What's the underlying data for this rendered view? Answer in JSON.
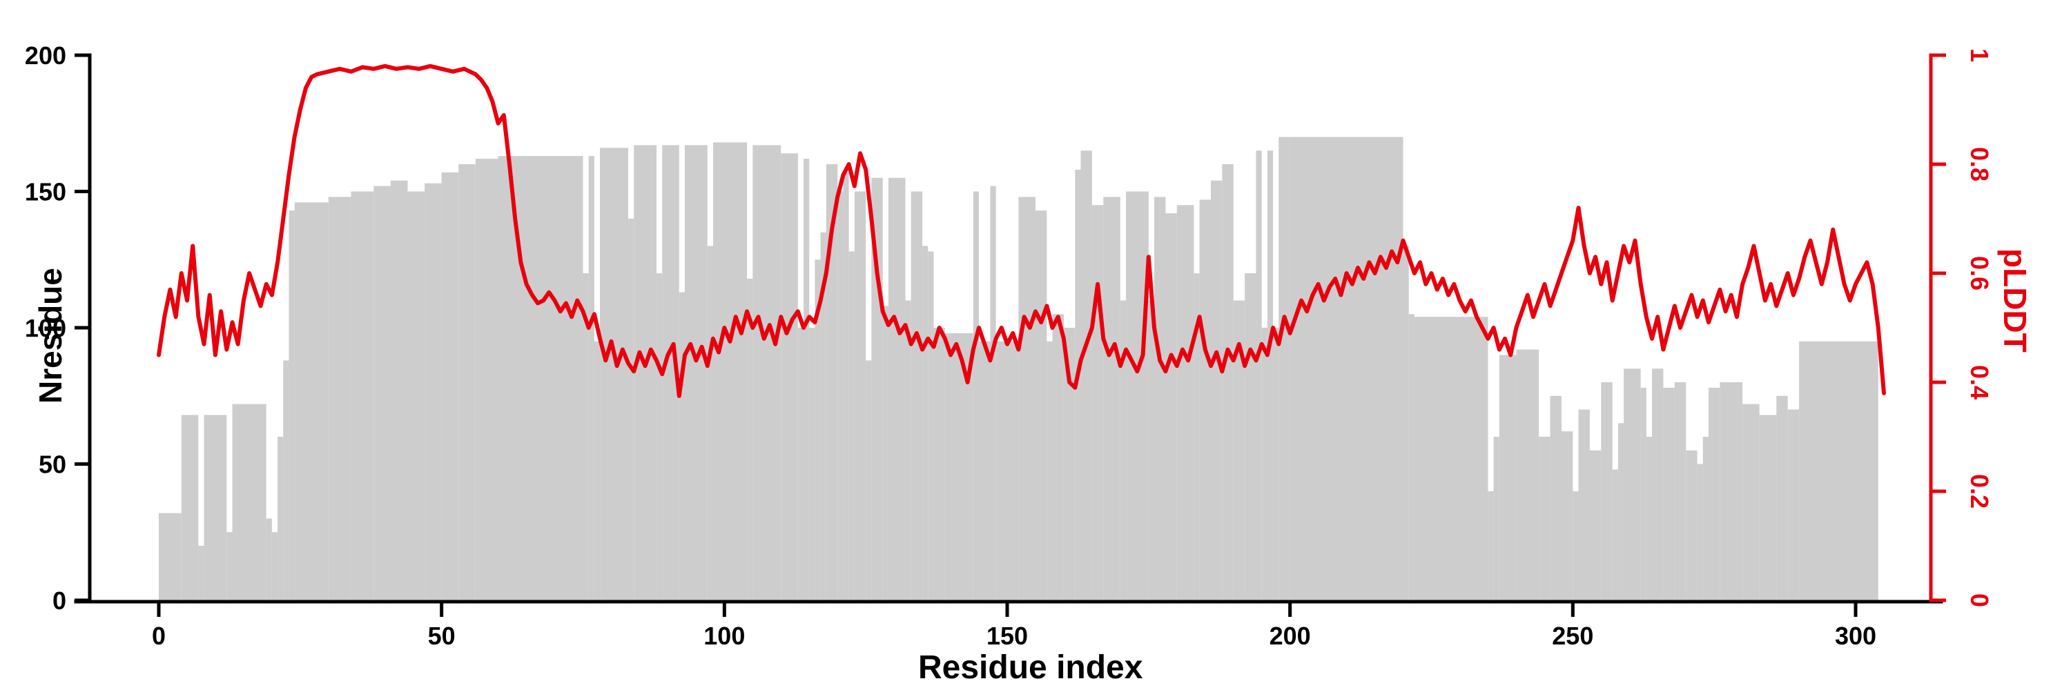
{
  "figure": {
    "background": "#ffffff"
  },
  "chart_data": {
    "type": "bar",
    "subtype": "histogram-with-line-overlay",
    "title": "",
    "xlabel": "Residue index",
    "ylabel_left": "Nresidue",
    "ylabel_right": "pLDDT",
    "xlim": [
      -8,
      318
    ],
    "y_left_lim": [
      0,
      200
    ],
    "y_right_lim": [
      0,
      1
    ],
    "x_ticks": [
      0,
      50,
      100,
      150,
      200,
      250,
      300
    ],
    "y_left_ticks": [
      0,
      50,
      100,
      150,
      200
    ],
    "y_right_ticks": [
      0,
      0.2,
      0.4,
      0.6,
      0.8,
      1
    ],
    "grid": false,
    "legend": "none",
    "colors": {
      "bars": "#cdcdcd",
      "line": "#e8000d",
      "axis": "#000000"
    },
    "series": [
      {
        "name": "Nresidue",
        "type": "bar",
        "axis": "left"
      },
      {
        "name": "pLDDT",
        "type": "line",
        "axis": "right"
      }
    ],
    "bars_segments": [
      [
        0,
        4,
        32
      ],
      [
        4,
        7,
        68
      ],
      [
        7,
        8,
        20
      ],
      [
        8,
        12,
        68
      ],
      [
        12,
        13,
        25
      ],
      [
        13,
        19,
        72
      ],
      [
        19,
        20,
        30
      ],
      [
        20,
        21,
        25
      ],
      [
        21,
        22,
        60
      ],
      [
        22,
        23,
        88
      ],
      [
        23,
        24,
        143
      ],
      [
        24,
        30,
        146
      ],
      [
        30,
        34,
        148
      ],
      [
        34,
        38,
        150
      ],
      [
        38,
        41,
        152
      ],
      [
        41,
        44,
        154
      ],
      [
        44,
        47,
        150
      ],
      [
        47,
        50,
        153
      ],
      [
        50,
        53,
        157
      ],
      [
        53,
        56,
        160
      ],
      [
        56,
        60,
        162
      ],
      [
        60,
        75,
        163
      ],
      [
        75,
        76,
        120
      ],
      [
        76,
        77,
        163
      ],
      [
        77,
        78,
        95
      ],
      [
        78,
        83,
        166
      ],
      [
        83,
        84,
        140
      ],
      [
        84,
        88,
        167
      ],
      [
        88,
        89,
        120
      ],
      [
        89,
        92,
        167
      ],
      [
        92,
        93,
        113
      ],
      [
        93,
        97,
        167
      ],
      [
        97,
        98,
        130
      ],
      [
        98,
        104,
        168
      ],
      [
        104,
        105,
        118
      ],
      [
        105,
        110,
        167
      ],
      [
        110,
        113,
        164
      ],
      [
        113,
        114,
        100
      ],
      [
        114,
        115,
        162
      ],
      [
        115,
        116,
        100
      ],
      [
        116,
        117,
        125
      ],
      [
        117,
        118,
        135
      ],
      [
        118,
        120,
        160
      ],
      [
        120,
        121,
        150
      ],
      [
        121,
        122,
        157
      ],
      [
        122,
        123,
        128
      ],
      [
        123,
        125,
        150
      ],
      [
        125,
        126,
        88
      ],
      [
        126,
        128,
        155
      ],
      [
        128,
        129,
        108
      ],
      [
        129,
        132,
        155
      ],
      [
        132,
        133,
        110
      ],
      [
        133,
        135,
        150
      ],
      [
        135,
        136,
        130
      ],
      [
        136,
        137,
        128
      ],
      [
        137,
        139,
        100
      ],
      [
        139,
        144,
        98
      ],
      [
        144,
        145,
        150
      ],
      [
        145,
        147,
        95
      ],
      [
        147,
        148,
        152
      ],
      [
        148,
        152,
        95
      ],
      [
        152,
        155,
        148
      ],
      [
        155,
        157,
        143
      ],
      [
        157,
        158,
        95
      ],
      [
        158,
        160,
        105
      ],
      [
        160,
        162,
        100
      ],
      [
        162,
        163,
        158
      ],
      [
        163,
        165,
        165
      ],
      [
        165,
        167,
        145
      ],
      [
        167,
        170,
        148
      ],
      [
        170,
        171,
        110
      ],
      [
        171,
        175,
        150
      ],
      [
        175,
        176,
        110
      ],
      [
        176,
        178,
        148
      ],
      [
        178,
        180,
        142
      ],
      [
        180,
        183,
        145
      ],
      [
        183,
        184,
        120
      ],
      [
        184,
        186,
        147
      ],
      [
        186,
        188,
        154
      ],
      [
        188,
        190,
        160
      ],
      [
        190,
        192,
        110
      ],
      [
        192,
        194,
        120
      ],
      [
        194,
        195,
        165
      ],
      [
        195,
        196,
        100
      ],
      [
        196,
        197,
        165
      ],
      [
        197,
        198,
        100
      ],
      [
        198,
        200,
        170
      ],
      [
        200,
        220,
        170
      ],
      [
        220,
        221,
        130
      ],
      [
        221,
        222,
        105
      ],
      [
        222,
        235,
        104
      ],
      [
        235,
        236,
        40
      ],
      [
        236,
        237,
        60
      ],
      [
        237,
        240,
        90
      ],
      [
        240,
        244,
        92
      ],
      [
        244,
        246,
        60
      ],
      [
        246,
        248,
        75
      ],
      [
        248,
        250,
        62
      ],
      [
        250,
        251,
        40
      ],
      [
        251,
        253,
        70
      ],
      [
        253,
        255,
        55
      ],
      [
        255,
        257,
        80
      ],
      [
        257,
        258,
        48
      ],
      [
        258,
        259,
        65
      ],
      [
        259,
        262,
        85
      ],
      [
        262,
        263,
        78
      ],
      [
        263,
        264,
        60
      ],
      [
        264,
        266,
        85
      ],
      [
        266,
        268,
        78
      ],
      [
        268,
        270,
        80
      ],
      [
        270,
        272,
        55
      ],
      [
        272,
        273,
        50
      ],
      [
        273,
        274,
        60
      ],
      [
        274,
        276,
        78
      ],
      [
        276,
        280,
        80
      ],
      [
        280,
        283,
        72
      ],
      [
        283,
        286,
        68
      ],
      [
        286,
        288,
        75
      ],
      [
        288,
        290,
        70
      ],
      [
        290,
        304,
        95
      ]
    ],
    "line_points": [
      [
        0,
        0.45
      ],
      [
        1,
        0.52
      ],
      [
        2,
        0.57
      ],
      [
        3,
        0.52
      ],
      [
        4,
        0.6
      ],
      [
        5,
        0.55
      ],
      [
        6,
        0.65
      ],
      [
        7,
        0.52
      ],
      [
        8,
        0.47
      ],
      [
        9,
        0.56
      ],
      [
        10,
        0.45
      ],
      [
        11,
        0.53
      ],
      [
        12,
        0.46
      ],
      [
        13,
        0.51
      ],
      [
        14,
        0.47
      ],
      [
        15,
        0.55
      ],
      [
        16,
        0.6
      ],
      [
        17,
        0.57
      ],
      [
        18,
        0.54
      ],
      [
        19,
        0.58
      ],
      [
        20,
        0.56
      ],
      [
        21,
        0.62
      ],
      [
        22,
        0.7
      ],
      [
        23,
        0.78
      ],
      [
        24,
        0.85
      ],
      [
        25,
        0.9
      ],
      [
        26,
        0.94
      ],
      [
        27,
        0.96
      ],
      [
        28,
        0.965
      ],
      [
        30,
        0.97
      ],
      [
        32,
        0.975
      ],
      [
        34,
        0.97
      ],
      [
        36,
        0.978
      ],
      [
        38,
        0.975
      ],
      [
        40,
        0.98
      ],
      [
        42,
        0.975
      ],
      [
        44,
        0.978
      ],
      [
        46,
        0.975
      ],
      [
        48,
        0.98
      ],
      [
        50,
        0.975
      ],
      [
        52,
        0.97
      ],
      [
        54,
        0.975
      ],
      [
        56,
        0.965
      ],
      [
        57,
        0.955
      ],
      [
        58,
        0.94
      ],
      [
        59,
        0.915
      ],
      [
        60,
        0.875
      ],
      [
        61,
        0.89
      ],
      [
        62,
        0.8
      ],
      [
        63,
        0.7
      ],
      [
        64,
        0.62
      ],
      [
        65,
        0.58
      ],
      [
        66,
        0.56
      ],
      [
        67,
        0.545
      ],
      [
        68,
        0.55
      ],
      [
        69,
        0.565
      ],
      [
        70,
        0.55
      ],
      [
        71,
        0.53
      ],
      [
        72,
        0.545
      ],
      [
        73,
        0.52
      ],
      [
        74,
        0.55
      ],
      [
        75,
        0.53
      ],
      [
        76,
        0.5
      ],
      [
        77,
        0.525
      ],
      [
        78,
        0.48
      ],
      [
        79,
        0.44
      ],
      [
        80,
        0.475
      ],
      [
        81,
        0.43
      ],
      [
        82,
        0.46
      ],
      [
        83,
        0.435
      ],
      [
        84,
        0.42
      ],
      [
        85,
        0.455
      ],
      [
        86,
        0.43
      ],
      [
        87,
        0.46
      ],
      [
        88,
        0.44
      ],
      [
        89,
        0.415
      ],
      [
        90,
        0.45
      ],
      [
        91,
        0.47
      ],
      [
        92,
        0.375
      ],
      [
        93,
        0.45
      ],
      [
        94,
        0.47
      ],
      [
        95,
        0.44
      ],
      [
        96,
        0.465
      ],
      [
        97,
        0.43
      ],
      [
        98,
        0.48
      ],
      [
        99,
        0.455
      ],
      [
        100,
        0.5
      ],
      [
        101,
        0.475
      ],
      [
        102,
        0.52
      ],
      [
        103,
        0.49
      ],
      [
        104,
        0.53
      ],
      [
        105,
        0.5
      ],
      [
        106,
        0.52
      ],
      [
        107,
        0.48
      ],
      [
        108,
        0.505
      ],
      [
        109,
        0.47
      ],
      [
        110,
        0.52
      ],
      [
        111,
        0.49
      ],
      [
        112,
        0.515
      ],
      [
        113,
        0.53
      ],
      [
        114,
        0.5
      ],
      [
        115,
        0.52
      ],
      [
        116,
        0.51
      ],
      [
        117,
        0.55
      ],
      [
        118,
        0.6
      ],
      [
        119,
        0.68
      ],
      [
        120,
        0.74
      ],
      [
        121,
        0.78
      ],
      [
        122,
        0.8
      ],
      [
        123,
        0.76
      ],
      [
        124,
        0.82
      ],
      [
        125,
        0.79
      ],
      [
        126,
        0.7
      ],
      [
        127,
        0.6
      ],
      [
        128,
        0.53
      ],
      [
        129,
        0.505
      ],
      [
        130,
        0.52
      ],
      [
        131,
        0.49
      ],
      [
        132,
        0.505
      ],
      [
        133,
        0.47
      ],
      [
        134,
        0.49
      ],
      [
        135,
        0.46
      ],
      [
        136,
        0.48
      ],
      [
        137,
        0.465
      ],
      [
        138,
        0.5
      ],
      [
        139,
        0.48
      ],
      [
        140,
        0.45
      ],
      [
        141,
        0.47
      ],
      [
        142,
        0.44
      ],
      [
        143,
        0.4
      ],
      [
        144,
        0.46
      ],
      [
        145,
        0.5
      ],
      [
        146,
        0.47
      ],
      [
        147,
        0.44
      ],
      [
        148,
        0.48
      ],
      [
        149,
        0.5
      ],
      [
        150,
        0.47
      ],
      [
        151,
        0.49
      ],
      [
        152,
        0.46
      ],
      [
        153,
        0.52
      ],
      [
        154,
        0.5
      ],
      [
        155,
        0.53
      ],
      [
        156,
        0.51
      ],
      [
        157,
        0.54
      ],
      [
        158,
        0.5
      ],
      [
        159,
        0.52
      ],
      [
        160,
        0.48
      ],
      [
        161,
        0.4
      ],
      [
        162,
        0.39
      ],
      [
        163,
        0.44
      ],
      [
        164,
        0.47
      ],
      [
        165,
        0.5
      ],
      [
        166,
        0.58
      ],
      [
        167,
        0.48
      ],
      [
        168,
        0.45
      ],
      [
        169,
        0.47
      ],
      [
        170,
        0.43
      ],
      [
        171,
        0.46
      ],
      [
        172,
        0.44
      ],
      [
        173,
        0.42
      ],
      [
        174,
        0.45
      ],
      [
        175,
        0.63
      ],
      [
        176,
        0.5
      ],
      [
        177,
        0.44
      ],
      [
        178,
        0.42
      ],
      [
        179,
        0.45
      ],
      [
        180,
        0.43
      ],
      [
        181,
        0.46
      ],
      [
        182,
        0.44
      ],
      [
        183,
        0.48
      ],
      [
        184,
        0.52
      ],
      [
        185,
        0.46
      ],
      [
        186,
        0.43
      ],
      [
        187,
        0.455
      ],
      [
        188,
        0.42
      ],
      [
        189,
        0.46
      ],
      [
        190,
        0.44
      ],
      [
        191,
        0.47
      ],
      [
        192,
        0.43
      ],
      [
        193,
        0.46
      ],
      [
        194,
        0.44
      ],
      [
        195,
        0.47
      ],
      [
        196,
        0.45
      ],
      [
        197,
        0.5
      ],
      [
        198,
        0.47
      ],
      [
        199,
        0.52
      ],
      [
        200,
        0.49
      ],
      [
        201,
        0.52
      ],
      [
        202,
        0.55
      ],
      [
        203,
        0.53
      ],
      [
        204,
        0.56
      ],
      [
        205,
        0.58
      ],
      [
        206,
        0.55
      ],
      [
        207,
        0.575
      ],
      [
        208,
        0.59
      ],
      [
        209,
        0.56
      ],
      [
        210,
        0.6
      ],
      [
        211,
        0.58
      ],
      [
        212,
        0.61
      ],
      [
        213,
        0.59
      ],
      [
        214,
        0.62
      ],
      [
        215,
        0.6
      ],
      [
        216,
        0.63
      ],
      [
        217,
        0.61
      ],
      [
        218,
        0.64
      ],
      [
        219,
        0.62
      ],
      [
        220,
        0.66
      ],
      [
        221,
        0.63
      ],
      [
        222,
        0.6
      ],
      [
        223,
        0.62
      ],
      [
        224,
        0.58
      ],
      [
        225,
        0.6
      ],
      [
        226,
        0.57
      ],
      [
        227,
        0.59
      ],
      [
        228,
        0.56
      ],
      [
        229,
        0.58
      ],
      [
        230,
        0.55
      ],
      [
        231,
        0.53
      ],
      [
        232,
        0.55
      ],
      [
        233,
        0.52
      ],
      [
        234,
        0.5
      ],
      [
        235,
        0.48
      ],
      [
        236,
        0.5
      ],
      [
        237,
        0.46
      ],
      [
        238,
        0.48
      ],
      [
        239,
        0.45
      ],
      [
        240,
        0.5
      ],
      [
        241,
        0.53
      ],
      [
        242,
        0.56
      ],
      [
        243,
        0.52
      ],
      [
        244,
        0.55
      ],
      [
        245,
        0.58
      ],
      [
        246,
        0.54
      ],
      [
        247,
        0.57
      ],
      [
        248,
        0.6
      ],
      [
        249,
        0.63
      ],
      [
        250,
        0.66
      ],
      [
        251,
        0.72
      ],
      [
        252,
        0.65
      ],
      [
        253,
        0.6
      ],
      [
        254,
        0.63
      ],
      [
        255,
        0.58
      ],
      [
        256,
        0.62
      ],
      [
        257,
        0.55
      ],
      [
        258,
        0.6
      ],
      [
        259,
        0.65
      ],
      [
        260,
        0.62
      ],
      [
        261,
        0.66
      ],
      [
        262,
        0.58
      ],
      [
        263,
        0.52
      ],
      [
        264,
        0.48
      ],
      [
        265,
        0.52
      ],
      [
        266,
        0.46
      ],
      [
        267,
        0.5
      ],
      [
        268,
        0.54
      ],
      [
        269,
        0.5
      ],
      [
        270,
        0.53
      ],
      [
        271,
        0.56
      ],
      [
        272,
        0.52
      ],
      [
        273,
        0.55
      ],
      [
        274,
        0.51
      ],
      [
        275,
        0.54
      ],
      [
        276,
        0.57
      ],
      [
        277,
        0.53
      ],
      [
        278,
        0.56
      ],
      [
        279,
        0.52
      ],
      [
        280,
        0.58
      ],
      [
        281,
        0.61
      ],
      [
        282,
        0.65
      ],
      [
        283,
        0.6
      ],
      [
        284,
        0.55
      ],
      [
        285,
        0.58
      ],
      [
        286,
        0.54
      ],
      [
        287,
        0.57
      ],
      [
        288,
        0.6
      ],
      [
        289,
        0.56
      ],
      [
        290,
        0.59
      ],
      [
        291,
        0.63
      ],
      [
        292,
        0.66
      ],
      [
        293,
        0.62
      ],
      [
        294,
        0.58
      ],
      [
        295,
        0.62
      ],
      [
        296,
        0.68
      ],
      [
        297,
        0.63
      ],
      [
        298,
        0.58
      ],
      [
        299,
        0.55
      ],
      [
        300,
        0.58
      ],
      [
        301,
        0.6
      ],
      [
        302,
        0.62
      ],
      [
        303,
        0.58
      ],
      [
        304,
        0.5
      ],
      [
        305,
        0.38
      ]
    ]
  }
}
